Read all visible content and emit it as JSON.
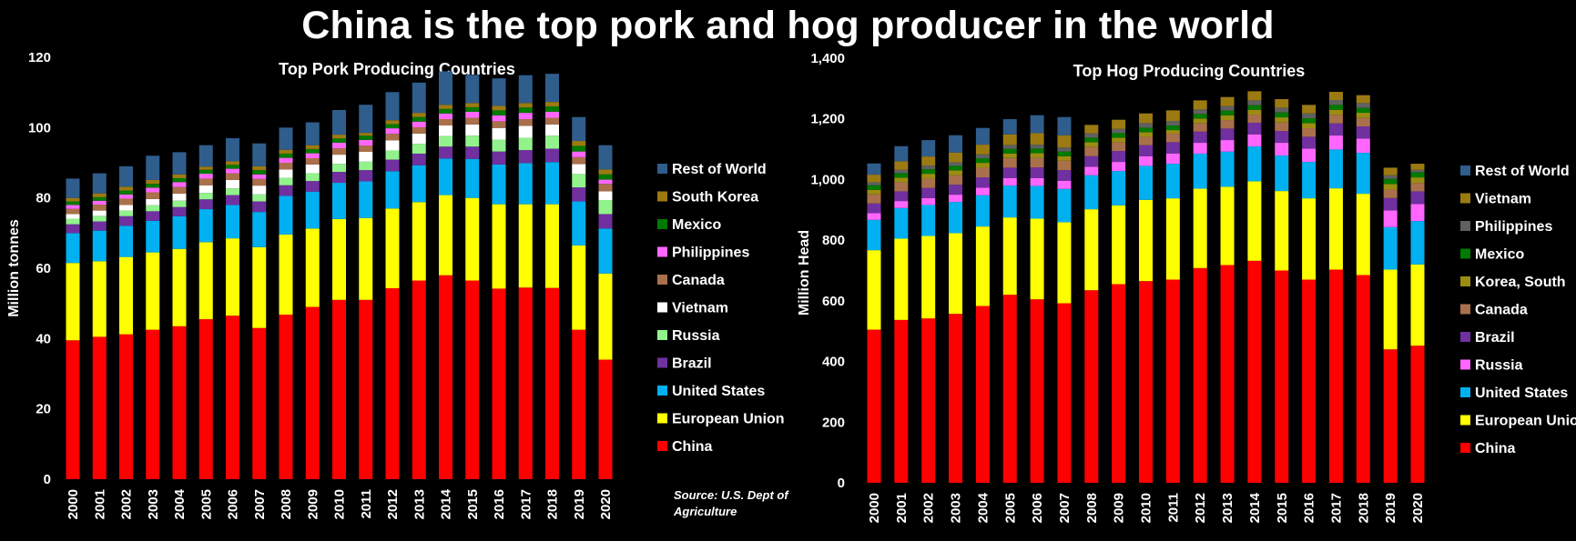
{
  "title": "China is the top pork and hog producer in the world",
  "source": "Source: U.S. Dept of Agriculture",
  "chart_data": [
    {
      "type": "bar",
      "stacked": true,
      "title": "Top Pork Producing Countries",
      "ylabel": "Million tonnes",
      "xlabel": "",
      "ylim": [
        0,
        120
      ],
      "yticks": [
        "0",
        "20",
        "40",
        "60",
        "80",
        "100",
        "120"
      ],
      "ytick_values": [
        0,
        20,
        40,
        60,
        80,
        100,
        120
      ],
      "legend_position": "right",
      "categories": [
        "2000",
        "2001",
        "2002",
        "2003",
        "2004",
        "2005",
        "2006",
        "2007",
        "2008",
        "2009",
        "2010",
        "2011",
        "2012",
        "2013",
        "2014",
        "2015",
        "2016",
        "2017",
        "2018",
        "2019",
        "2020"
      ],
      "series": [
        {
          "name": "China",
          "color": "#ff0000",
          "values": [
            39.5,
            40.5,
            41.2,
            42.5,
            43.5,
            45.5,
            46.5,
            43,
            46.8,
            49,
            51,
            51,
            54.3,
            56.5,
            58,
            56.5,
            54.2,
            54.5,
            54.4,
            42.5,
            34
          ]
        },
        {
          "name": "European Union",
          "color": "#ffff00",
          "values": [
            22,
            21.5,
            22,
            22,
            22,
            21.9,
            22,
            23,
            22.8,
            22.3,
            23,
            23.3,
            22.7,
            22.3,
            22.8,
            23.5,
            24,
            23.7,
            23.8,
            24,
            24.5
          ]
        },
        {
          "name": "United States",
          "color": "#00b0f0",
          "values": [
            8.5,
            8.7,
            8.9,
            9,
            9.3,
            9.4,
            9.5,
            10,
            11,
            10.5,
            10.3,
            10.4,
            10.6,
            10.5,
            10.4,
            11.1,
            11.3,
            11.7,
            12,
            12.5,
            12.8
          ]
        },
        {
          "name": "Brazil",
          "color": "#7030a0",
          "values": [
            2.5,
            2.6,
            2.7,
            2.7,
            2.6,
            2.8,
            2.8,
            3,
            3,
            3,
            3.1,
            3.2,
            3.3,
            3.3,
            3.4,
            3.5,
            3.7,
            3.7,
            3.8,
            4,
            4.1
          ]
        },
        {
          "name": "Russia",
          "color": "#92f28c",
          "values": [
            1.6,
            1.6,
            1.6,
            1.7,
            1.8,
            1.8,
            1.9,
            2,
            2.1,
            2.2,
            2.3,
            2.4,
            2.6,
            2.8,
            3,
            3.1,
            3.4,
            3.5,
            3.7,
            3.8,
            4
          ]
        },
        {
          "name": "Vietnam",
          "color": "#ffffff",
          "values": [
            1.3,
            1.5,
            1.6,
            1.8,
            2,
            2.2,
            2.4,
            2.5,
            2.4,
            2.5,
            2.6,
            2.8,
            2.9,
            2.9,
            3,
            3.2,
            3.3,
            3.4,
            3.2,
            2.8,
            2.5
          ]
        },
        {
          "name": "Canada",
          "color": "#a9704b",
          "values": [
            1.5,
            1.7,
            1.8,
            1.9,
            1.9,
            1.9,
            1.9,
            1.9,
            1.9,
            1.8,
            1.8,
            1.8,
            1.8,
            1.8,
            1.8,
            1.9,
            1.9,
            1.9,
            1.9,
            2,
            2.1
          ]
        },
        {
          "name": "Philippines",
          "color": "#ff66ff",
          "values": [
            1.1,
            1.1,
            1.2,
            1.3,
            1.4,
            1.4,
            1.3,
            1.3,
            1.4,
            1.4,
            1.6,
            1.6,
            1.6,
            1.6,
            1.6,
            1.7,
            1.7,
            1.8,
            1.7,
            1.6,
            1.2
          ]
        },
        {
          "name": "Mexico",
          "color": "#007a00",
          "values": [
            1,
            1,
            1.1,
            1.1,
            1.1,
            1.1,
            1.1,
            1.2,
            1.2,
            1.2,
            1.2,
            1.2,
            1.2,
            1.3,
            1.3,
            1.3,
            1.4,
            1.5,
            1.5,
            1.6,
            1.5
          ]
        },
        {
          "name": "South Korea",
          "color": "#9c7a12",
          "values": [
            1,
            1.1,
            1.1,
            1.1,
            1.1,
            0.9,
            1,
            1.1,
            1.1,
            1.1,
            1.1,
            0.8,
            1.1,
            1.2,
            1.2,
            1.2,
            1.3,
            1.3,
            1.3,
            1.4,
            1.4
          ]
        },
        {
          "name": "Rest of World",
          "color": "#2f5d8c",
          "values": [
            5.5,
            5.7,
            5.8,
            6.9,
            6.3,
            6.1,
            6.6,
            6.5,
            6.3,
            6.5,
            7,
            8,
            8,
            8.6,
            9.5,
            8,
            7.8,
            7.9,
            8,
            6.8,
            6.9
          ]
        }
      ]
    },
    {
      "type": "bar",
      "stacked": true,
      "title": "Top Hog Producing Countries",
      "ylabel": "Million Head",
      "xlabel": "",
      "ylim": [
        0,
        1400
      ],
      "yticks": [
        "0",
        "200",
        "400",
        "600",
        "800",
        "1,000",
        "1,200",
        "1,400"
      ],
      "ytick_values": [
        0,
        200,
        400,
        600,
        800,
        1000,
        1200,
        1400
      ],
      "legend_position": "right",
      "categories": [
        "2000",
        "2001",
        "2002",
        "2003",
        "2004",
        "2005",
        "2006",
        "2007",
        "2008",
        "2009",
        "2010",
        "2011",
        "2012",
        "2013",
        "2014",
        "2015",
        "2016",
        "2017",
        "2018",
        "2019",
        "2020"
      ],
      "series": [
        {
          "name": "China",
          "color": "#ff0000",
          "values": [
            505,
            537,
            542,
            557,
            583,
            620,
            605,
            592,
            635,
            655,
            665,
            670,
            708,
            718,
            732,
            700,
            670,
            703,
            685,
            440,
            452
          ]
        },
        {
          "name": "European Union",
          "color": "#ffff00",
          "values": [
            262,
            268,
            272,
            266,
            262,
            255,
            266,
            267,
            267,
            260,
            268,
            268,
            262,
            258,
            262,
            262,
            268,
            268,
            268,
            263,
            268
          ]
        },
        {
          "name": "United States",
          "color": "#00b0f0",
          "values": [
            100,
            101,
            102,
            103,
            103,
            105,
            108,
            110,
            112,
            113,
            112,
            114,
            115,
            116,
            115,
            117,
            120,
            128,
            135,
            140,
            143
          ]
        },
        {
          "name": "Russia",
          "color": "#ff66ff",
          "values": [
            22,
            23,
            23,
            24,
            25,
            25,
            26,
            27,
            28,
            30,
            32,
            34,
            36,
            38,
            40,
            42,
            44,
            46,
            47,
            55,
            56
          ]
        },
        {
          "name": "Brazil",
          "color": "#7030a0",
          "values": [
            32,
            32,
            33,
            33,
            34,
            34,
            35,
            35,
            35,
            36,
            36,
            37,
            37,
            38,
            38,
            39,
            39,
            40,
            40,
            41,
            42
          ]
        },
        {
          "name": "Canada",
          "color": "#a9704b",
          "values": [
            30,
            30,
            31,
            31,
            32,
            32,
            32,
            31,
            30,
            29,
            28,
            28,
            28,
            28,
            27,
            28,
            28,
            28,
            28,
            28,
            28
          ]
        },
        {
          "name": "Korea, South",
          "color": "#9c8c12",
          "values": [
            15,
            15,
            16,
            16,
            16,
            15,
            15,
            15,
            16,
            15,
            15,
            12,
            15,
            16,
            16,
            17,
            17,
            17,
            17,
            18,
            18
          ]
        },
        {
          "name": "Mexico",
          "color": "#007a00",
          "values": [
            15,
            15,
            15,
            15,
            15,
            15,
            15,
            15,
            15,
            15,
            15,
            15,
            15,
            15,
            15,
            16,
            16,
            16,
            16,
            17,
            17
          ]
        },
        {
          "name": "Philippines",
          "color": "#606060",
          "values": [
            10,
            11,
            12,
            12,
            13,
            13,
            13,
            14,
            14,
            14,
            15,
            15,
            15,
            15,
            16,
            16,
            16,
            16,
            16,
            12,
            8
          ]
        },
        {
          "name": "Vietnam",
          "color": "#9c7a12",
          "values": [
            25,
            28,
            30,
            32,
            32,
            35,
            38,
            40,
            28,
            30,
            32,
            35,
            30,
            30,
            30,
            28,
            28,
            27,
            26,
            25,
            20
          ]
        },
        {
          "name": "Rest of World",
          "color": "#2f5d8c",
          "values": [
            37,
            50,
            54,
            57,
            55,
            50,
            59,
            60,
            0,
            0,
            0,
            0,
            0,
            0,
            0,
            0,
            0,
            0,
            0,
            0,
            0
          ]
        }
      ]
    }
  ]
}
